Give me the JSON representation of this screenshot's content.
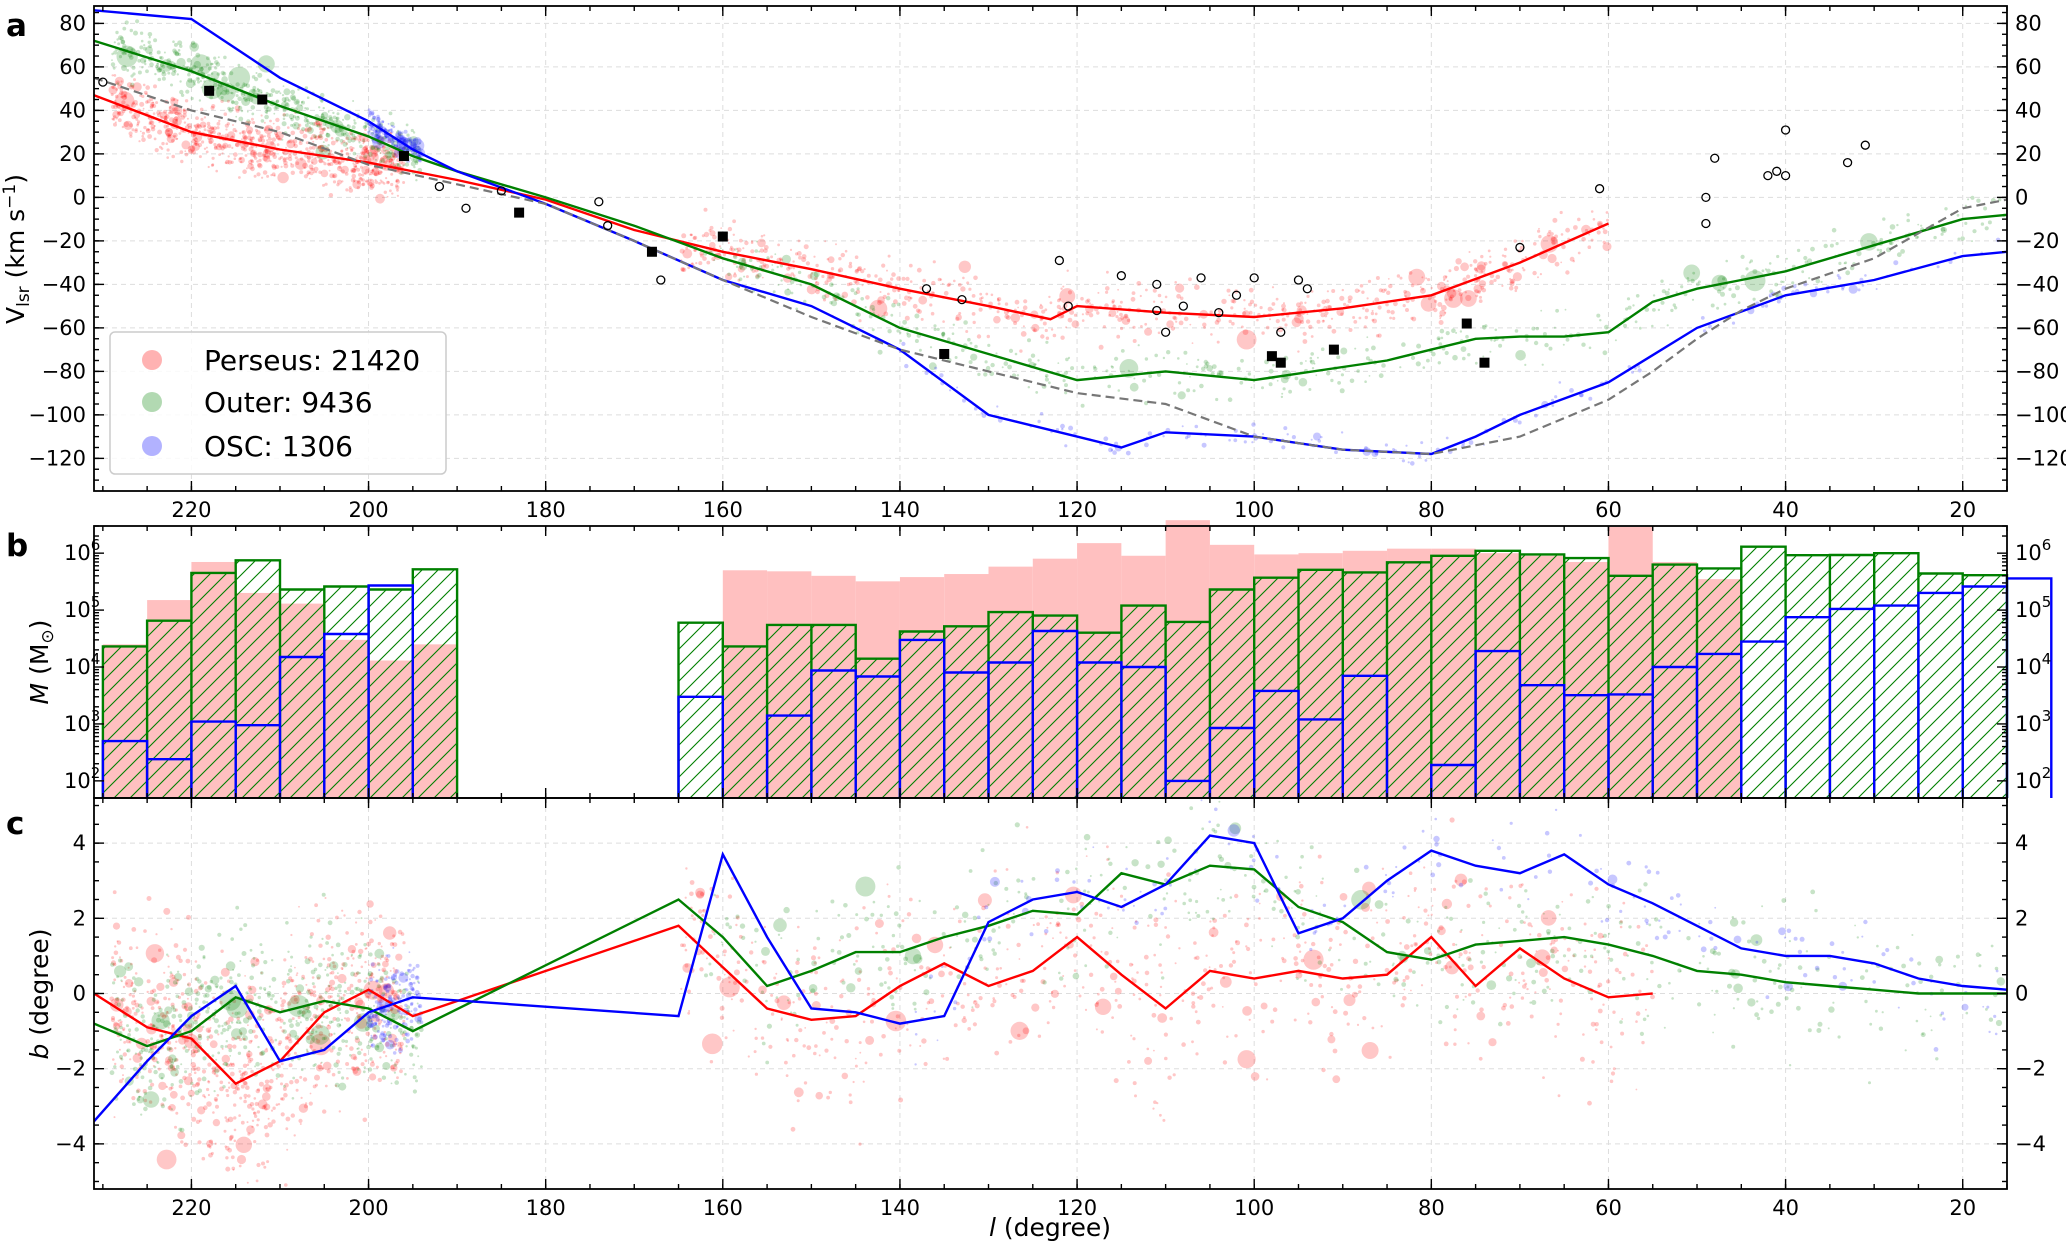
{
  "colors": {
    "perseus": "#ff0000",
    "outer": "#008000",
    "osc": "#0000ff",
    "model": "#777777",
    "hist_fill": "#ffc0c0"
  },
  "chart_data": [
    {
      "panel": "a",
      "type": "scatter",
      "xlabel": "l (degree)",
      "ylabel": "Vlsr (km s⁻¹)",
      "xlim": [
        231,
        15
      ],
      "ylim": [
        -135,
        88
      ],
      "xticks": [
        220,
        200,
        180,
        160,
        140,
        120,
        100,
        80,
        60,
        40,
        20
      ],
      "yticks": [
        -120,
        -100,
        -80,
        -60,
        -40,
        -20,
        0,
        20,
        40,
        60,
        80
      ],
      "legend": {
        "placement": "lower-left",
        "entries": [
          {
            "label": "Perseus: 21420",
            "color": "#ff0000"
          },
          {
            "label": "Outer: 9436",
            "color": "#008000"
          },
          {
            "label": "OSC: 1306",
            "color": "#0000ff"
          }
        ]
      },
      "series": [
        {
          "name": "Perseus",
          "color": "#ff0000",
          "x": [
            231,
            220,
            210,
            200,
            190,
            180,
            170,
            160,
            150,
            140,
            130,
            123,
            120,
            110,
            100,
            90,
            80,
            70,
            60
          ],
          "y": [
            47,
            30,
            22,
            16,
            8,
            -1,
            -15,
            -25,
            -33,
            -42,
            -50,
            -56,
            -50,
            -53,
            -55,
            -51,
            -45,
            -30,
            -12
          ]
        },
        {
          "name": "Outer",
          "color": "#008000",
          "x": [
            231,
            220,
            210,
            200,
            195,
            190,
            180,
            170,
            160,
            150,
            140,
            130,
            120,
            110,
            100,
            90,
            85,
            80,
            75,
            70,
            65,
            60,
            55,
            50,
            45,
            40,
            30,
            20,
            15
          ],
          "y": [
            72,
            58,
            42,
            28,
            19,
            12,
            0,
            -13,
            -28,
            -40,
            -60,
            -72,
            -84,
            -80,
            -84,
            -78,
            -75,
            -70,
            -65,
            -64,
            -64,
            -62,
            -48,
            -42,
            -38,
            -34,
            -22,
            -10,
            -8
          ]
        },
        {
          "name": "OSC",
          "color": "#0000ff",
          "x": [
            231,
            220,
            210,
            200,
            195,
            190,
            180,
            170,
            160,
            150,
            140,
            130,
            120,
            115,
            110,
            100,
            90,
            80,
            75,
            70,
            60,
            50,
            40,
            30,
            20,
            15
          ],
          "y": [
            86,
            82,
            55,
            35,
            22,
            12,
            -3,
            -20,
            -38,
            -50,
            -70,
            -100,
            -110,
            -115,
            -108,
            -110,
            -116,
            -118,
            -110,
            -100,
            -85,
            -60,
            -45,
            -38,
            -27,
            -25
          ]
        },
        {
          "name": "model",
          "color": "#777777",
          "x": [
            231,
            220,
            210,
            200,
            190,
            180,
            170,
            160,
            150,
            140,
            130,
            120,
            110,
            100,
            90,
            80,
            70,
            60,
            55,
            50,
            45,
            40,
            30,
            20,
            15
          ],
          "y": [
            55,
            40,
            30,
            15,
            6,
            -3,
            -20,
            -38,
            -55,
            -70,
            -80,
            -90,
            -95,
            -110,
            -116,
            -118,
            -110,
            -93,
            -80,
            -65,
            -52,
            -42,
            -28,
            -5,
            -1
          ]
        }
      ],
      "markers_filled": [
        [
          218,
          49
        ],
        [
          212,
          45
        ],
        [
          196,
          19
        ],
        [
          183,
          -7
        ],
        [
          168,
          -25
        ],
        [
          160,
          -18
        ],
        [
          135,
          -72
        ],
        [
          97,
          -76
        ],
        [
          98,
          -73
        ],
        [
          91,
          -70
        ],
        [
          76,
          -58
        ],
        [
          74,
          -76
        ]
      ],
      "markers_open": [
        [
          230,
          53
        ],
        [
          192,
          5
        ],
        [
          189,
          -5
        ],
        [
          185,
          3
        ],
        [
          174,
          -2
        ],
        [
          173,
          -13
        ],
        [
          167,
          -38
        ],
        [
          137,
          -42
        ],
        [
          133,
          -47
        ],
        [
          122,
          -29
        ],
        [
          121,
          -50
        ],
        [
          115,
          -36
        ],
        [
          111,
          -40
        ],
        [
          111,
          -52
        ],
        [
          110,
          -62
        ],
        [
          108,
          -50
        ],
        [
          106,
          -37
        ],
        [
          104,
          -53
        ],
        [
          102,
          -45
        ],
        [
          100,
          -37
        ],
        [
          97,
          -62
        ],
        [
          95,
          -38
        ],
        [
          94,
          -42
        ],
        [
          70,
          -23
        ],
        [
          61,
          4
        ],
        [
          49,
          0
        ],
        [
          49,
          -12
        ],
        [
          48,
          18
        ],
        [
          42,
          10
        ],
        [
          41,
          12
        ],
        [
          40,
          31
        ],
        [
          40,
          10
        ],
        [
          33,
          16
        ],
        [
          31,
          24
        ]
      ]
    },
    {
      "panel": "b",
      "type": "bar",
      "xlabel": "",
      "ylabel": "M (M⊙)",
      "yscale": "log",
      "ylim": [
        50,
        3000000
      ],
      "ytick_exponents": [
        2,
        3,
        4,
        5,
        6
      ],
      "xlim": [
        231,
        15
      ],
      "bin_width": 5,
      "series": [
        {
          "name": "Perseus",
          "style": "filled",
          "color": "#ffc0c0",
          "bins": [
            [
              230,
              25000
            ],
            [
              225,
              150000
            ],
            [
              220,
              700000
            ],
            [
              215,
              200000
            ],
            [
              210,
              130000
            ],
            [
              205,
              30000
            ],
            [
              200,
              13000
            ],
            [
              195,
              25000
            ],
            [
              160,
              500000
            ],
            [
              155,
              480000
            ],
            [
              150,
              400000
            ],
            [
              145,
              320000
            ],
            [
              140,
              380000
            ],
            [
              135,
              430000
            ],
            [
              130,
              580000
            ],
            [
              125,
              800000
            ],
            [
              120,
              1500000
            ],
            [
              115,
              900000
            ],
            [
              110,
              3800000
            ],
            [
              105,
              1400000
            ],
            [
              100,
              950000
            ],
            [
              95,
              1000000
            ],
            [
              90,
              1100000
            ],
            [
              85,
              1200000
            ],
            [
              80,
              1200000
            ],
            [
              75,
              1000000
            ],
            [
              70,
              900000
            ],
            [
              65,
              700000
            ],
            [
              60,
              2900000
            ],
            [
              55,
              700000
            ],
            [
              50,
              350000
            ]
          ]
        },
        {
          "name": "Outer",
          "style": "hatched",
          "color": "#008000",
          "bins": [
            [
              230,
              23000
            ],
            [
              225,
              65000
            ],
            [
              220,
              450000
            ],
            [
              215,
              750000
            ],
            [
              210,
              230000
            ],
            [
              205,
              260000
            ],
            [
              200,
              230000
            ],
            [
              195,
              520000
            ],
            [
              165,
              60000
            ],
            [
              160,
              23000
            ],
            [
              155,
              55000
            ],
            [
              150,
              55000
            ],
            [
              145,
              14000
            ],
            [
              140,
              42000
            ],
            [
              135,
              52000
            ],
            [
              130,
              92000
            ],
            [
              125,
              80000
            ],
            [
              120,
              40000
            ],
            [
              115,
              120000
            ],
            [
              110,
              62000
            ],
            [
              105,
              230000
            ],
            [
              100,
              370000
            ],
            [
              95,
              510000
            ],
            [
              90,
              460000
            ],
            [
              85,
              690000
            ],
            [
              80,
              900000
            ],
            [
              75,
              1100000
            ],
            [
              70,
              950000
            ],
            [
              65,
              820000
            ],
            [
              60,
              400000
            ],
            [
              55,
              630000
            ],
            [
              50,
              540000
            ],
            [
              45,
              1300000
            ],
            [
              40,
              920000
            ],
            [
              35,
              930000
            ],
            [
              30,
              1000000
            ],
            [
              25,
              440000
            ],
            [
              20,
              410000
            ]
          ]
        },
        {
          "name": "OSC",
          "style": "outline",
          "color": "#0000ff",
          "bins": [
            [
              230,
              500
            ],
            [
              225,
              240
            ],
            [
              220,
              1100
            ],
            [
              215,
              950
            ],
            [
              210,
              15000
            ],
            [
              205,
              38000
            ],
            [
              200,
              270000
            ],
            [
              165,
              3000
            ],
            [
              160,
              0
            ],
            [
              155,
              1400
            ],
            [
              150,
              8700
            ],
            [
              145,
              6800
            ],
            [
              140,
              30000
            ],
            [
              135,
              8000
            ],
            [
              130,
              12000
            ],
            [
              125,
              43000
            ],
            [
              120,
              12000
            ],
            [
              115,
              10000
            ],
            [
              110,
              100
            ],
            [
              105,
              850
            ],
            [
              100,
              3800
            ],
            [
              95,
              1200
            ],
            [
              90,
              7000
            ],
            [
              85,
              0
            ],
            [
              80,
              190
            ],
            [
              75,
              19000
            ],
            [
              70,
              4800
            ],
            [
              65,
              3200
            ],
            [
              60,
              3300
            ],
            [
              55,
              10000
            ],
            [
              50,
              17000
            ],
            [
              45,
              28000
            ],
            [
              40,
              75000
            ],
            [
              35,
              105000
            ],
            [
              30,
              120000
            ],
            [
              25,
              200000
            ],
            [
              20,
              260000
            ],
            [
              15,
              360000
            ]
          ]
        }
      ]
    },
    {
      "panel": "c",
      "type": "scatter",
      "xlabel": "l (degree)",
      "ylabel": "b (degree)",
      "xlim": [
        231,
        15
      ],
      "ylim": [
        -5.2,
        5.2
      ],
      "xticks": [
        220,
        200,
        180,
        160,
        140,
        120,
        100,
        80,
        60,
        40,
        20
      ],
      "yticks": [
        -4,
        -2,
        0,
        2,
        4
      ],
      "series": [
        {
          "name": "Perseus",
          "color": "#ff0000",
          "x": [
            231,
            225,
            220,
            215,
            210,
            205,
            200,
            195,
            165,
            160,
            155,
            150,
            145,
            140,
            135,
            130,
            125,
            120,
            115,
            110,
            105,
            100,
            95,
            90,
            85,
            80,
            75,
            70,
            65,
            60,
            55
          ],
          "y": [
            0,
            -0.9,
            -1.2,
            -2.4,
            -1.8,
            -0.5,
            0.1,
            -0.6,
            1.8,
            0.7,
            -0.4,
            -0.7,
            -0.6,
            0.2,
            0.8,
            0.2,
            0.6,
            1.5,
            0.5,
            -0.4,
            0.6,
            0.4,
            0.6,
            0.4,
            0.5,
            1.5,
            0.2,
            1.2,
            0.4,
            -0.1,
            0
          ]
        },
        {
          "name": "Outer",
          "color": "#008000",
          "x": [
            231,
            225,
            220,
            215,
            210,
            205,
            200,
            195,
            165,
            160,
            155,
            150,
            145,
            140,
            135,
            130,
            125,
            120,
            115,
            110,
            105,
            100,
            95,
            90,
            85,
            80,
            75,
            70,
            65,
            60,
            55,
            50,
            45,
            40,
            35,
            30,
            25,
            20,
            15
          ],
          "y": [
            -0.8,
            -1.4,
            -1.0,
            -0.1,
            -0.5,
            -0.2,
            -0.4,
            -1.0,
            2.5,
            1.5,
            0.2,
            0.6,
            1.1,
            1.1,
            1.5,
            1.8,
            2.2,
            2.1,
            3.2,
            2.9,
            3.4,
            3.3,
            2.3,
            1.9,
            1.1,
            0.9,
            1.3,
            1.4,
            1.5,
            1.3,
            1.0,
            0.6,
            0.5,
            0.3,
            0.2,
            0.1,
            0,
            0,
            0
          ]
        },
        {
          "name": "OSC",
          "color": "#0000ff",
          "x": [
            231,
            225,
            220,
            215,
            210,
            205,
            200,
            195,
            165,
            160,
            155,
            150,
            145,
            140,
            135,
            130,
            125,
            120,
            115,
            110,
            105,
            100,
            95,
            90,
            85,
            80,
            75,
            70,
            65,
            60,
            55,
            50,
            45,
            40,
            35,
            30,
            25,
            20,
            15
          ],
          "y": [
            -3.4,
            -1.8,
            -0.6,
            0.2,
            -1.8,
            -1.5,
            -0.5,
            -0.1,
            -0.6,
            3.7,
            1.5,
            -0.4,
            -0.5,
            -0.8,
            -0.6,
            1.9,
            2.5,
            2.7,
            2.3,
            2.9,
            4.2,
            4.0,
            1.6,
            2.0,
            3.0,
            3.8,
            3.4,
            3.2,
            3.7,
            2.9,
            2.4,
            1.8,
            1.2,
            1.0,
            1.0,
            0.8,
            0.4,
            0.2,
            0.1
          ]
        }
      ]
    }
  ]
}
